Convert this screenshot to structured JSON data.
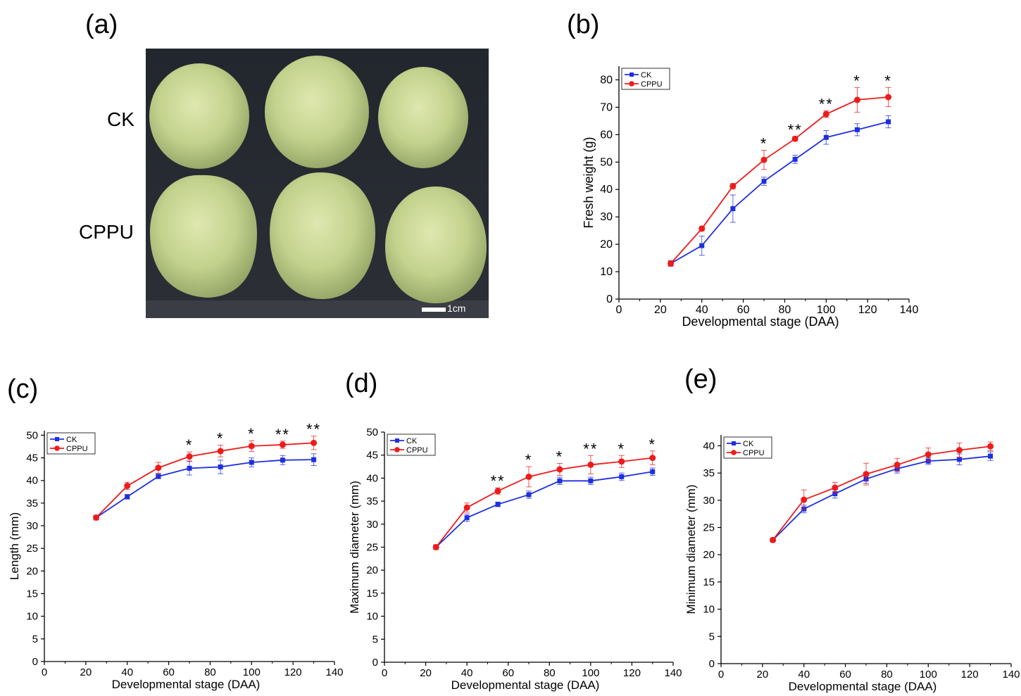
{
  "panels": {
    "a": "(a)",
    "b": "(b)",
    "c": "(c)",
    "d": "(d)",
    "e": "(e)"
  },
  "photo": {
    "row_labels": [
      "CK",
      "CPPU"
    ],
    "scale_bar": "1cm"
  },
  "colors": {
    "CK": "#1f2fe0",
    "CPPU": "#ee1b1b"
  },
  "chart_data": [
    {
      "type": "line",
      "panel": "(b)",
      "xlabel": "Developmental stage (DAA)",
      "ylabel": "Fresh weight (g)",
      "xlim": [
        0,
        140
      ],
      "ylim": [
        0,
        85
      ],
      "xticks": [
        0,
        20,
        40,
        60,
        80,
        100,
        120,
        140
      ],
      "yticks": [
        0,
        10,
        20,
        30,
        40,
        50,
        60,
        70,
        80
      ],
      "legend": "top-left",
      "x": [
        25,
        40,
        55,
        70,
        85,
        100,
        115,
        130
      ],
      "series": [
        {
          "name": "CK",
          "marker": "square",
          "values": [
            13,
            19.5,
            33,
            43,
            51,
            59,
            61.8,
            64.7
          ],
          "errors": [
            1,
            3.5,
            5,
            1.5,
            1.5,
            2.5,
            2.2,
            2.2
          ]
        },
        {
          "name": "CPPU",
          "marker": "circle",
          "values": [
            13,
            25.7,
            41.2,
            50.8,
            58.5,
            67.5,
            72.7,
            73.7
          ],
          "errors": [
            1,
            0.8,
            1,
            3.5,
            0.8,
            1.2,
            4.5,
            3.5
          ]
        }
      ],
      "annotations": [
        "",
        "",
        "",
        "*",
        "**",
        "**",
        "*",
        "*"
      ]
    },
    {
      "type": "line",
      "panel": "(c)",
      "xlabel": "Developmental stage (DAA)",
      "ylabel": "Length (mm)",
      "xlim": [
        0,
        140
      ],
      "ylim": [
        0,
        51
      ],
      "xticks": [
        0,
        20,
        40,
        60,
        80,
        100,
        120,
        140
      ],
      "yticks": [
        0,
        5,
        10,
        15,
        20,
        25,
        30,
        35,
        40,
        45,
        50
      ],
      "legend": "top-left",
      "x": [
        25,
        40,
        55,
        70,
        85,
        100,
        115,
        130
      ],
      "series": [
        {
          "name": "CK",
          "marker": "square",
          "values": [
            31.8,
            36.4,
            40.9,
            42.7,
            43,
            44,
            44.5,
            44.6
          ],
          "errors": [
            0.5,
            0.5,
            0.5,
            1.5,
            1.5,
            1,
            1,
            1.3
          ]
        },
        {
          "name": "CPPU",
          "marker": "circle",
          "values": [
            31.8,
            38.8,
            42.8,
            45.3,
            46.5,
            47.6,
            47.9,
            48.3
          ],
          "errors": [
            0.5,
            0.8,
            1.2,
            1,
            1.3,
            1.2,
            0.8,
            1.5
          ]
        }
      ],
      "annotations": [
        "",
        "",
        "",
        "*",
        "*",
        "*",
        "**",
        "**"
      ]
    },
    {
      "type": "line",
      "panel": "(d)",
      "xlabel": "Developmental stage (DAA)",
      "ylabel": "Maximum diameter (mm)",
      "xlim": [
        0,
        140
      ],
      "ylim": [
        0,
        50
      ],
      "xticks": [
        0,
        20,
        40,
        60,
        80,
        100,
        120,
        140
      ],
      "yticks": [
        0,
        5,
        10,
        15,
        20,
        25,
        30,
        35,
        40,
        45,
        50
      ],
      "legend": "top-left",
      "x": [
        25,
        40,
        55,
        70,
        85,
        100,
        115,
        130
      ],
      "series": [
        {
          "name": "CK",
          "marker": "square",
          "values": [
            25,
            31.4,
            34.3,
            36.4,
            39.4,
            39.4,
            40.3,
            41.4
          ],
          "errors": [
            0.5,
            0.8,
            0.5,
            0.8,
            0.8,
            0.8,
            0.8,
            0.8
          ]
        },
        {
          "name": "CPPU",
          "marker": "circle",
          "values": [
            25,
            33.6,
            37.2,
            40.3,
            41.9,
            42.9,
            43.6,
            44.4
          ],
          "errors": [
            0.5,
            1,
            0.7,
            2.2,
            1.3,
            2,
            1.3,
            1.5
          ]
        }
      ],
      "annotations": [
        "",
        "",
        "**",
        "*",
        "*",
        "**",
        "*",
        "*"
      ]
    },
    {
      "type": "line",
      "panel": "(e)",
      "xlabel": "Developmental stage (DAA)",
      "ylabel": "Minimum diameter (mm)",
      "xlim": [
        0,
        140
      ],
      "ylim": [
        0,
        42
      ],
      "xticks": [
        0,
        20,
        40,
        60,
        80,
        100,
        120,
        140
      ],
      "yticks": [
        0,
        5,
        10,
        15,
        20,
        25,
        30,
        35,
        40
      ],
      "legend": "top-left",
      "x": [
        25,
        40,
        55,
        70,
        85,
        100,
        115,
        130
      ],
      "series": [
        {
          "name": "CK",
          "marker": "square",
          "values": [
            22.7,
            28.4,
            31.2,
            33.9,
            35.8,
            37.2,
            37.5,
            38.1
          ],
          "errors": [
            0.3,
            0.7,
            0.8,
            0.8,
            0.8,
            0.6,
            1,
            0.8
          ]
        },
        {
          "name": "CPPU",
          "marker": "circle",
          "values": [
            22.7,
            30.1,
            32.3,
            34.8,
            36.5,
            38.4,
            39.2,
            39.9
          ],
          "errors": [
            0.3,
            1.8,
            1,
            2,
            1.2,
            1.2,
            1.3,
            0.8
          ]
        }
      ],
      "annotations": [
        "",
        "",
        "",
        "",
        "",
        "",
        "",
        ""
      ]
    }
  ]
}
